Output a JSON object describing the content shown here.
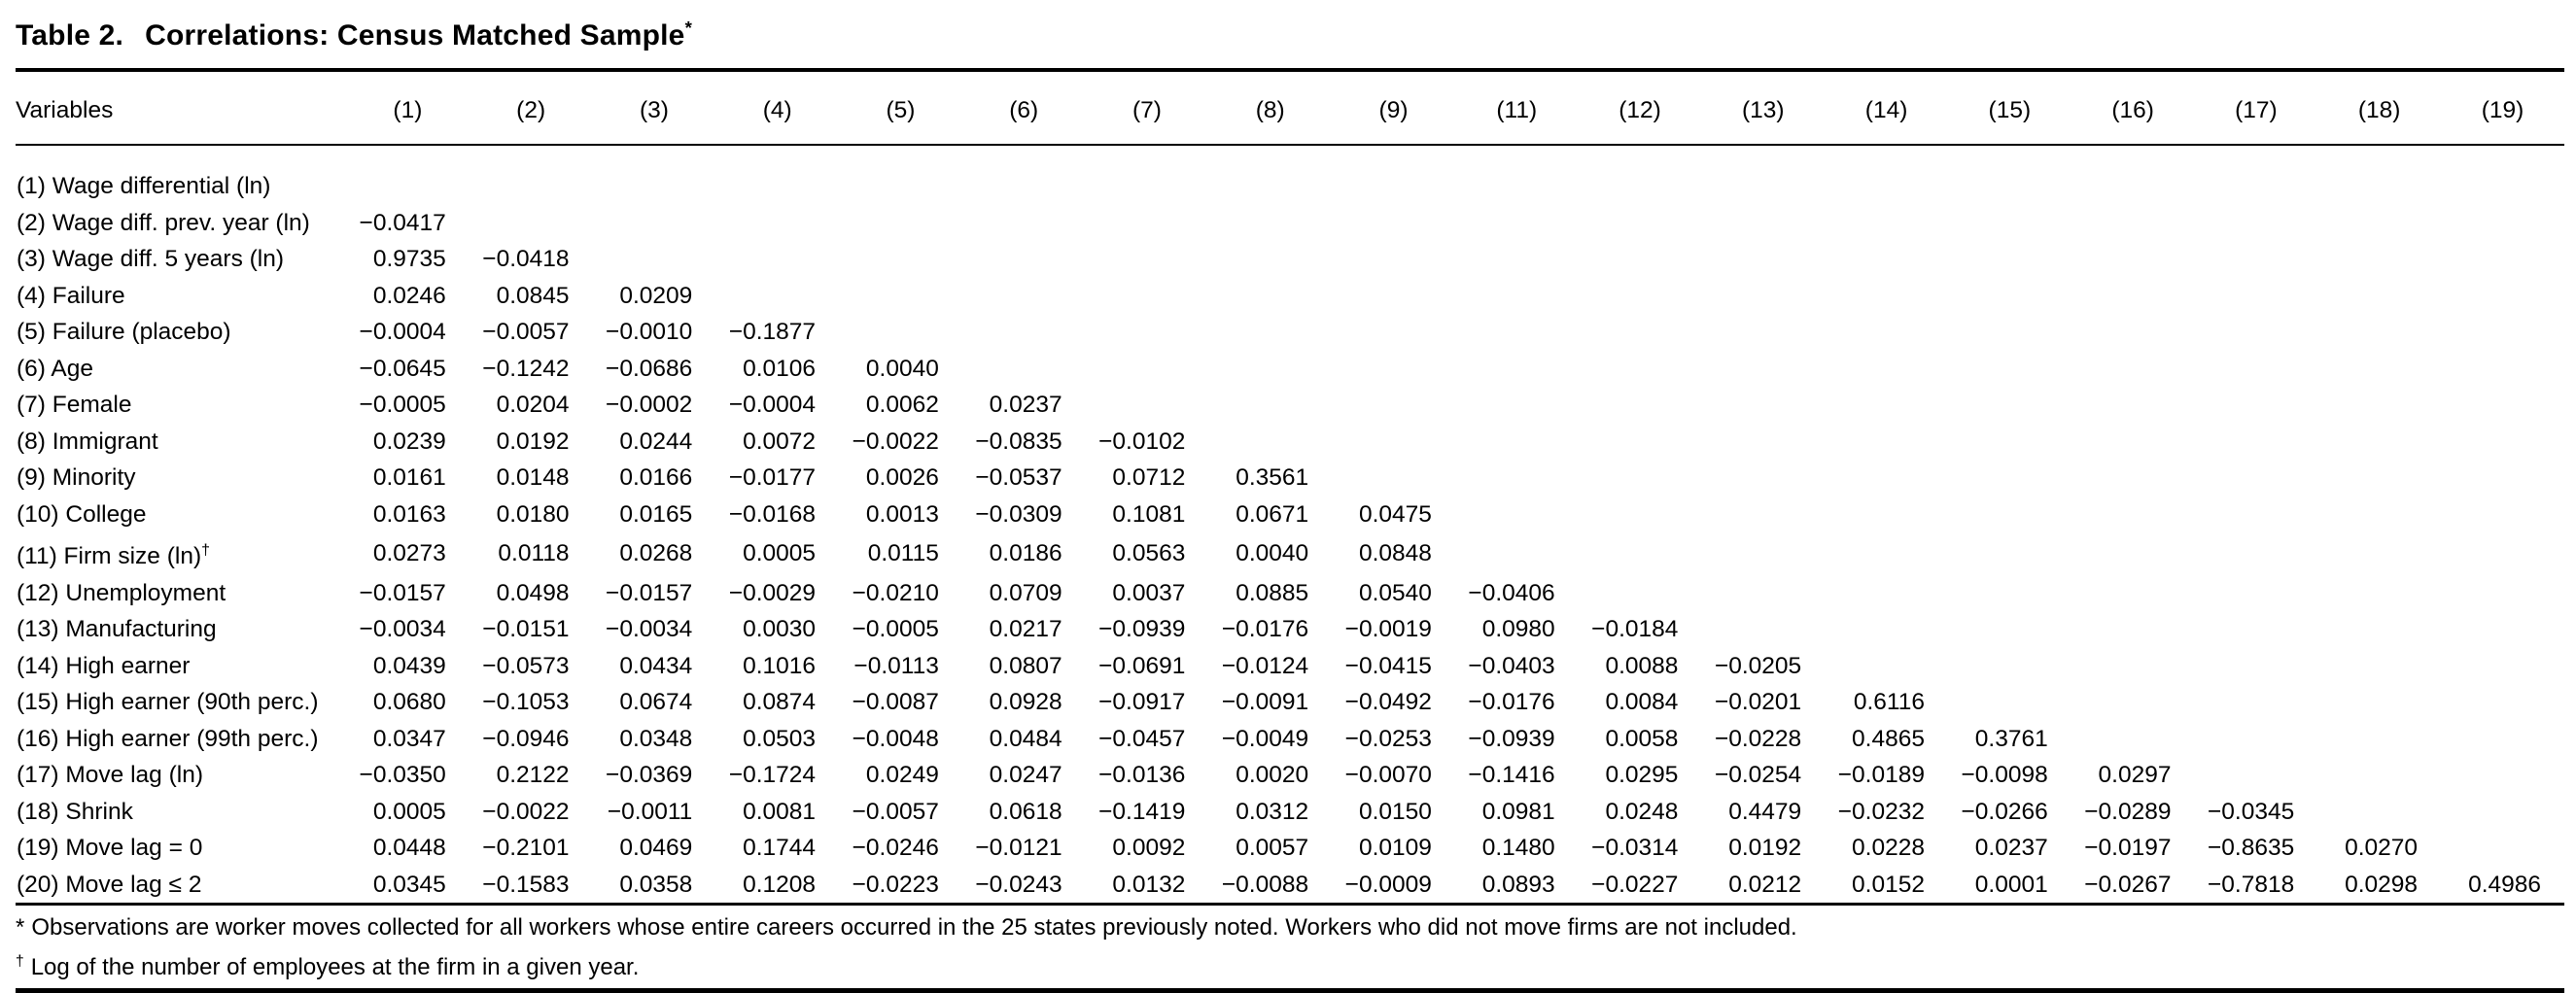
{
  "title": {
    "label": "Table 2.",
    "text": "Correlations: Census Matched Sample",
    "sup": "*"
  },
  "colors": {
    "text": "#000000",
    "background": "#ffffff"
  },
  "table": {
    "row_header": "Variables",
    "columns": [
      "(1)",
      "(2)",
      "(3)",
      "(4)",
      "(5)",
      "(6)",
      "(7)",
      "(8)",
      "(9)",
      "(11)",
      "(12)",
      "(13)",
      "(14)",
      "(15)",
      "(16)",
      "(17)",
      "(18)",
      "(19)"
    ],
    "rows": [
      {
        "label": "(1) Wage differential (ln)",
        "values": []
      },
      {
        "label": "(2) Wage diff. prev. year (ln)",
        "values": [
          "−0.0417"
        ]
      },
      {
        "label": "(3) Wage diff. 5 years (ln)",
        "values": [
          "0.9735",
          "−0.0418"
        ]
      },
      {
        "label": "(4) Failure",
        "values": [
          "0.0246",
          "0.0845",
          "0.0209"
        ]
      },
      {
        "label": "(5) Failure (placebo)",
        "values": [
          "−0.0004",
          "−0.0057",
          "−0.0010",
          "−0.1877"
        ]
      },
      {
        "label": "(6) Age",
        "values": [
          "−0.0645",
          "−0.1242",
          "−0.0686",
          "0.0106",
          "0.0040"
        ]
      },
      {
        "label": "(7) Female",
        "values": [
          "−0.0005",
          "0.0204",
          "−0.0002",
          "−0.0004",
          "0.0062",
          "0.0237"
        ]
      },
      {
        "label": "(8) Immigrant",
        "values": [
          "0.0239",
          "0.0192",
          "0.0244",
          "0.0072",
          "−0.0022",
          "−0.0835",
          "−0.0102"
        ]
      },
      {
        "label": "(9) Minority",
        "values": [
          "0.0161",
          "0.0148",
          "0.0166",
          "−0.0177",
          "0.0026",
          "−0.0537",
          "0.0712",
          "0.3561"
        ]
      },
      {
        "label": "(10) College",
        "values": [
          "0.0163",
          "0.0180",
          "0.0165",
          "−0.0168",
          "0.0013",
          "−0.0309",
          "0.1081",
          "0.0671",
          "0.0475"
        ]
      },
      {
        "label": "(11) Firm size (ln)",
        "label_sup": "†",
        "values": [
          "0.0273",
          "0.0118",
          "0.0268",
          "0.0005",
          "0.0115",
          "0.0186",
          "0.0563",
          "0.0040",
          "0.0848"
        ]
      },
      {
        "label": "(12) Unemployment",
        "values": [
          "−0.0157",
          "0.0498",
          "−0.0157",
          "−0.0029",
          "−0.0210",
          "0.0709",
          "0.0037",
          "0.0885",
          "0.0540",
          "−0.0406"
        ]
      },
      {
        "label": "(13) Manufacturing",
        "values": [
          "−0.0034",
          "−0.0151",
          "−0.0034",
          "0.0030",
          "−0.0005",
          "0.0217",
          "−0.0939",
          "−0.0176",
          "−0.0019",
          "0.0980",
          "−0.0184"
        ]
      },
      {
        "label": "(14) High earner",
        "values": [
          "0.0439",
          "−0.0573",
          "0.0434",
          "0.1016",
          "−0.0113",
          "0.0807",
          "−0.0691",
          "−0.0124",
          "−0.0415",
          "−0.0403",
          "0.0088",
          "−0.0205"
        ]
      },
      {
        "label": "(15) High earner (90th perc.)",
        "values": [
          "0.0680",
          "−0.1053",
          "0.0674",
          "0.0874",
          "−0.0087",
          "0.0928",
          "−0.0917",
          "−0.0091",
          "−0.0492",
          "−0.0176",
          "0.0084",
          "−0.0201",
          "0.6116"
        ]
      },
      {
        "label": "(16) High earner (99th perc.)",
        "values": [
          "0.0347",
          "−0.0946",
          "0.0348",
          "0.0503",
          "−0.0048",
          "0.0484",
          "−0.0457",
          "−0.0049",
          "−0.0253",
          "−0.0939",
          "0.0058",
          "−0.0228",
          "0.4865",
          "0.3761"
        ]
      },
      {
        "label": "(17) Move lag (ln)",
        "values": [
          "−0.0350",
          "0.2122",
          "−0.0369",
          "−0.1724",
          "0.0249",
          "0.0247",
          "−0.0136",
          "0.0020",
          "−0.0070",
          "−0.1416",
          "0.0295",
          "−0.0254",
          "−0.0189",
          "−0.0098",
          "0.0297"
        ]
      },
      {
        "label": "(18) Shrink",
        "values": [
          "0.0005",
          "−0.0022",
          "−0.0011",
          "0.0081",
          "−0.0057",
          "0.0618",
          "−0.1419",
          "0.0312",
          "0.0150",
          "0.0981",
          "0.0248",
          "0.4479",
          "−0.0232",
          "−0.0266",
          "−0.0289",
          "−0.0345"
        ]
      },
      {
        "label": "(19) Move lag = 0",
        "values": [
          "0.0448",
          "−0.2101",
          "0.0469",
          "0.1744",
          "−0.0246",
          "−0.0121",
          "0.0092",
          "0.0057",
          "0.0109",
          "0.1480",
          "−0.0314",
          "0.0192",
          "0.0228",
          "0.0237",
          "−0.0197",
          "−0.8635",
          "0.0270"
        ]
      },
      {
        "label": "(20) Move lag ≤ 2",
        "values": [
          "0.0345",
          "−0.1583",
          "0.0358",
          "0.1208",
          "−0.0223",
          "−0.0243",
          "0.0132",
          "−0.0088",
          "−0.0009",
          "0.0893",
          "−0.0227",
          "0.0212",
          "0.0152",
          "0.0001",
          "−0.0267",
          "−0.7818",
          "0.0298",
          "0.4986"
        ]
      }
    ]
  },
  "footnotes": [
    {
      "marker": "*",
      "text": "Observations are worker moves collected for all workers whose entire careers occurred in the 25 states previously noted. Workers who did not move firms are not included."
    },
    {
      "marker": "†",
      "text": "Log of the number of employees at the firm in a given year."
    }
  ]
}
